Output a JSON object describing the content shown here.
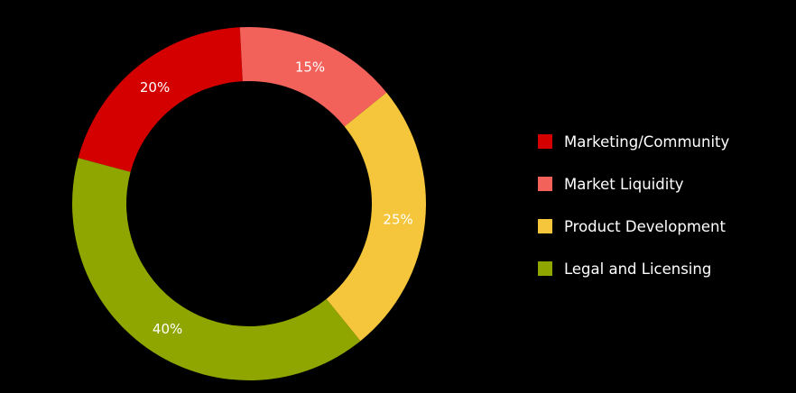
{
  "chart_data": {
    "type": "pie",
    "donut": true,
    "categories": [
      "Marketing/Community",
      "Market Liquidity",
      "Product Development",
      "Legal and Licensing"
    ],
    "values": [
      20,
      15,
      25,
      40
    ],
    "labels": [
      "20%",
      "15%",
      "25%",
      "40%"
    ],
    "colors": [
      "#d40000",
      "#f2615a",
      "#f5c63c",
      "#8fa600"
    ],
    "legend_position": "right"
  }
}
